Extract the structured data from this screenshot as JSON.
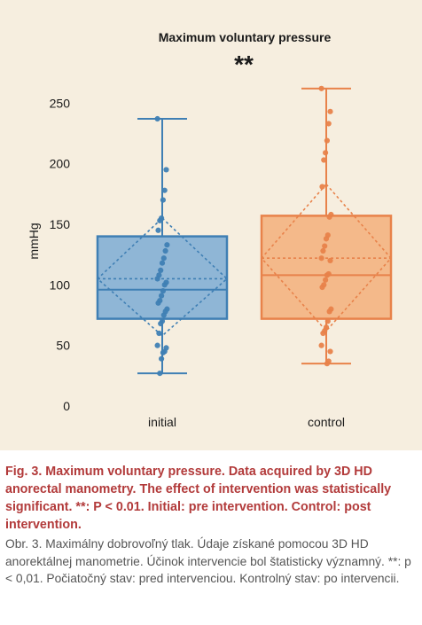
{
  "chart_data": {
    "type": "box",
    "title": "Maximum voluntary pressure",
    "annotation": "**",
    "ylabel": "mmHg",
    "xlabel": "",
    "ylim": [
      0,
      270
    ],
    "yticks": [
      0,
      50,
      100,
      150,
      200,
      250
    ],
    "grid": false,
    "categories": [
      "initial",
      "control"
    ],
    "series": [
      {
        "category": "initial",
        "color": "#3f7fb4",
        "fill": "#8fb6d6",
        "whisker_min": 27,
        "q1": 72,
        "median": 96,
        "mean": 105,
        "q3": 140,
        "whisker_max": 237,
        "mean_ci": [
          58,
          155
        ],
        "points": [
          237,
          195,
          178,
          170,
          155,
          153,
          145,
          133,
          128,
          122,
          118,
          112,
          108,
          105,
          102,
          100,
          95,
          91,
          87,
          85,
          80,
          78,
          75,
          70,
          68,
          60,
          50,
          48,
          45,
          44,
          39,
          27
        ]
      },
      {
        "category": "control",
        "color": "#e8824a",
        "fill": "#f4b98a",
        "whisker_min": 35,
        "q1": 72,
        "median": 108,
        "mean": 122,
        "q3": 157,
        "whisker_max": 262,
        "mean_ci": [
          62,
          183
        ],
        "points": [
          262,
          243,
          233,
          219,
          209,
          203,
          181,
          158,
          156,
          141,
          138,
          132,
          128,
          122,
          120,
          109,
          108,
          104,
          100,
          98,
          80,
          78,
          70,
          65,
          62,
          60,
          50,
          45,
          37,
          35
        ]
      }
    ]
  },
  "caption": {
    "english": "Fig. 3. Maximum voluntary pressure. Data acquired by 3D HD anorectal manometry. The effect of intervention was statistically significant. **: P < 0.01. Initial: pre intervention. Control: post intervention.",
    "slovak": "Obr. 3. Maximálny dobrovoľný tlak. Údaje získané pomocou 3D HD anorektálnej manometrie. Účinok intervencie bol štatisticky významný. **: p < 0,01. Počiatočný stav: pred intervenciou. Kontrolný stav: po intervencii."
  }
}
